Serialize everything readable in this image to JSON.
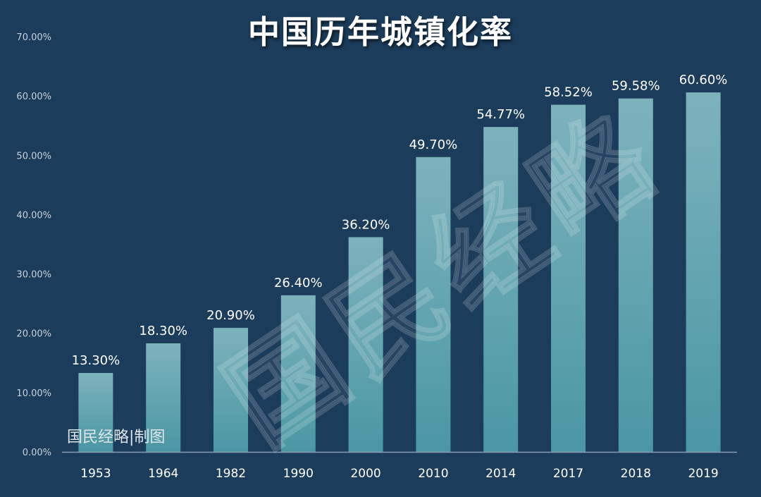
{
  "colors": {
    "background": "#1c3c5b",
    "bar_top": "#7db2bd",
    "bar_bottom": "#4a97a3",
    "label_text": "#ffffff",
    "tick_text": "#c7d1dc",
    "axis_line": "#8a9db0"
  },
  "watermark": "国民经略",
  "credit": "国民经略|制图",
  "chart_data": {
    "type": "bar",
    "title": "中国历年城镇化率",
    "xlabel": "",
    "ylabel": "",
    "categories": [
      "1953",
      "1964",
      "1982",
      "1990",
      "2000",
      "2010",
      "2014",
      "2017",
      "2018",
      "2019"
    ],
    "values": [
      13.3,
      18.3,
      20.9,
      26.4,
      36.2,
      49.7,
      54.77,
      58.52,
      59.58,
      60.6
    ],
    "data_labels": [
      "13.30%",
      "18.30%",
      "20.90%",
      "26.40%",
      "36.20%",
      "49.70%",
      "54.77%",
      "58.52%",
      "59.58%",
      "60.60%"
    ],
    "yticks": [
      0,
      10,
      20,
      30,
      40,
      50,
      60,
      70
    ],
    "ytick_labels": [
      "0.00%",
      "10.00%",
      "20.00%",
      "30.00%",
      "40.00%",
      "50.00%",
      "60.00%",
      "70.00%"
    ],
    "ylim": [
      0,
      70
    ],
    "grid": false,
    "legend": "none"
  }
}
